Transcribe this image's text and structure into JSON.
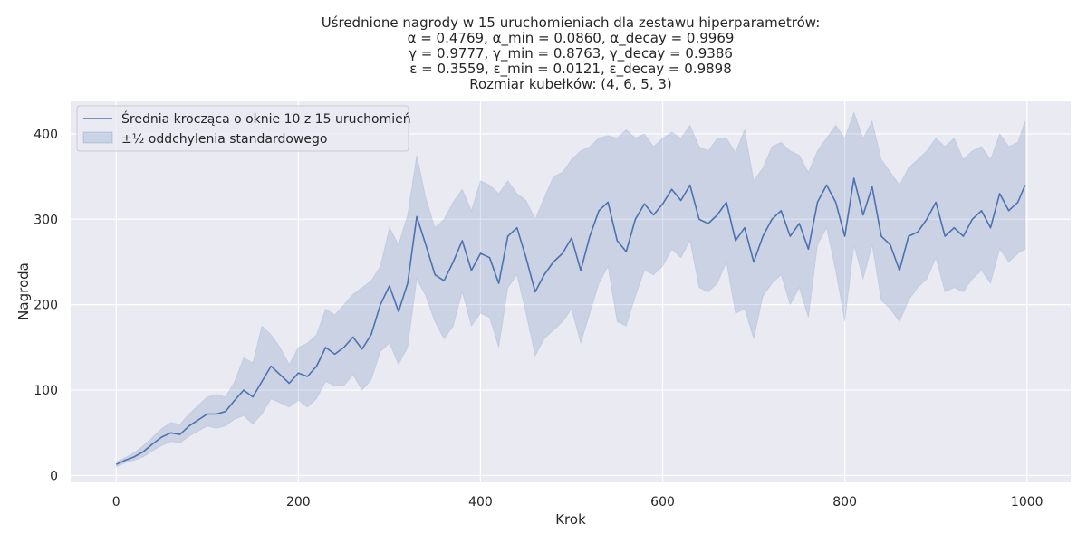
{
  "chart_data": {
    "type": "line",
    "title_lines": [
      "Uśrednione nagrody w 15 uruchomieniach dla zestawu hiperparametrów:",
      "α = 0.4769, α_min = 0.0860, α_decay = 0.9969",
      "γ = 0.9777, γ_min = 0.8763, γ_decay = 0.9386",
      "ε = 0.3559, ε_min = 0.0121, ε_decay = 0.9898",
      "Rozmiar kubełków: (4, 6, 5, 3)"
    ],
    "xlabel": "Krok",
    "ylabel": "Nagroda",
    "xlim": [
      -50,
      1048
    ],
    "ylim": [
      -8,
      438
    ],
    "xticks": [
      0,
      200,
      400,
      600,
      800,
      1000
    ],
    "yticks": [
      0,
      100,
      200,
      300,
      400
    ],
    "grid": true,
    "legend_position": "top-left",
    "series": [
      {
        "name": "Średnia krocząca o oknie 10 z 15 uruchomień",
        "kind": "line",
        "color": "#4c72b0",
        "x": [
          0,
          10,
          20,
          30,
          40,
          50,
          60,
          70,
          80,
          90,
          100,
          110,
          120,
          130,
          140,
          150,
          160,
          170,
          180,
          190,
          200,
          210,
          220,
          230,
          240,
          250,
          260,
          270,
          280,
          290,
          300,
          310,
          320,
          330,
          340,
          350,
          360,
          370,
          380,
          390,
          400,
          410,
          420,
          430,
          440,
          450,
          460,
          470,
          480,
          490,
          500,
          510,
          520,
          530,
          540,
          550,
          560,
          570,
          580,
          590,
          600,
          610,
          620,
          630,
          640,
          650,
          660,
          670,
          680,
          690,
          700,
          710,
          720,
          730,
          740,
          750,
          760,
          770,
          780,
          790,
          800,
          810,
          820,
          830,
          840,
          850,
          860,
          870,
          880,
          890,
          900,
          910,
          920,
          930,
          940,
          950,
          960,
          970,
          980,
          990,
          998
        ],
        "y": [
          13,
          18,
          22,
          28,
          37,
          45,
          50,
          48,
          58,
          65,
          72,
          72,
          75,
          88,
          100,
          92,
          110,
          128,
          118,
          108,
          120,
          116,
          128,
          150,
          142,
          150,
          162,
          148,
          165,
          200,
          222,
          192,
          225,
          303,
          270,
          235,
          228,
          250,
          275,
          240,
          260,
          255,
          225,
          280,
          290,
          255,
          215,
          235,
          250,
          260,
          278,
          240,
          280,
          310,
          320,
          275,
          262,
          300,
          318,
          305,
          318,
          335,
          322,
          340,
          300,
          295,
          305,
          320,
          275,
          290,
          250,
          280,
          300,
          310,
          280,
          295,
          265,
          320,
          340,
          320,
          280,
          348,
          305,
          338,
          280,
          270,
          240,
          280,
          285,
          300,
          320,
          280,
          290,
          280,
          300,
          310,
          290,
          330,
          310,
          320,
          340
        ]
      },
      {
        "name": "±½ oddchylenia standardowego",
        "kind": "band",
        "color": "#4c72b0",
        "x": [
          0,
          10,
          20,
          30,
          40,
          50,
          60,
          70,
          80,
          90,
          100,
          110,
          120,
          130,
          140,
          150,
          160,
          170,
          180,
          190,
          200,
          210,
          220,
          230,
          240,
          250,
          260,
          270,
          280,
          290,
          300,
          310,
          320,
          330,
          340,
          350,
          360,
          370,
          380,
          390,
          400,
          410,
          420,
          430,
          440,
          450,
          460,
          470,
          480,
          490,
          500,
          510,
          520,
          530,
          540,
          550,
          560,
          570,
          580,
          590,
          600,
          610,
          620,
          630,
          640,
          650,
          660,
          670,
          680,
          690,
          700,
          710,
          720,
          730,
          740,
          750,
          760,
          770,
          780,
          790,
          800,
          810,
          820,
          830,
          840,
          850,
          860,
          870,
          880,
          890,
          900,
          910,
          920,
          930,
          940,
          950,
          960,
          970,
          980,
          990,
          998
        ],
        "upper": [
          16,
          21,
          27,
          35,
          45,
          55,
          62,
          60,
          72,
          82,
          92,
          95,
          92,
          110,
          138,
          132,
          175,
          165,
          150,
          130,
          150,
          155,
          165,
          195,
          188,
          200,
          212,
          220,
          228,
          245,
          290,
          270,
          305,
          375,
          325,
          290,
          300,
          320,
          335,
          310,
          345,
          340,
          330,
          345,
          330,
          322,
          300,
          325,
          350,
          355,
          370,
          380,
          385,
          395,
          398,
          395,
          405,
          395,
          400,
          385,
          395,
          402,
          395,
          410,
          385,
          380,
          395,
          395,
          378,
          405,
          345,
          360,
          385,
          390,
          380,
          375,
          355,
          380,
          395,
          410,
          395,
          425,
          395,
          415,
          370,
          355,
          340,
          360,
          370,
          380,
          395,
          385,
          395,
          370,
          380,
          385,
          370,
          400,
          385,
          390,
          415
        ],
        "lower": [
          10,
          15,
          18,
          22,
          29,
          35,
          40,
          38,
          46,
          52,
          58,
          55,
          58,
          66,
          70,
          60,
          72,
          90,
          85,
          80,
          88,
          80,
          90,
          110,
          105,
          105,
          118,
          100,
          112,
          145,
          155,
          130,
          150,
          230,
          210,
          180,
          160,
          175,
          215,
          175,
          190,
          185,
          150,
          220,
          235,
          190,
          140,
          160,
          170,
          180,
          195,
          155,
          190,
          225,
          245,
          180,
          175,
          210,
          240,
          235,
          245,
          265,
          255,
          275,
          220,
          215,
          225,
          250,
          190,
          195,
          160,
          210,
          225,
          235,
          200,
          220,
          185,
          270,
          290,
          240,
          180,
          270,
          230,
          270,
          205,
          195,
          180,
          205,
          220,
          230,
          255,
          215,
          220,
          215,
          230,
          240,
          225,
          265,
          250,
          260,
          265
        ]
      }
    ]
  }
}
